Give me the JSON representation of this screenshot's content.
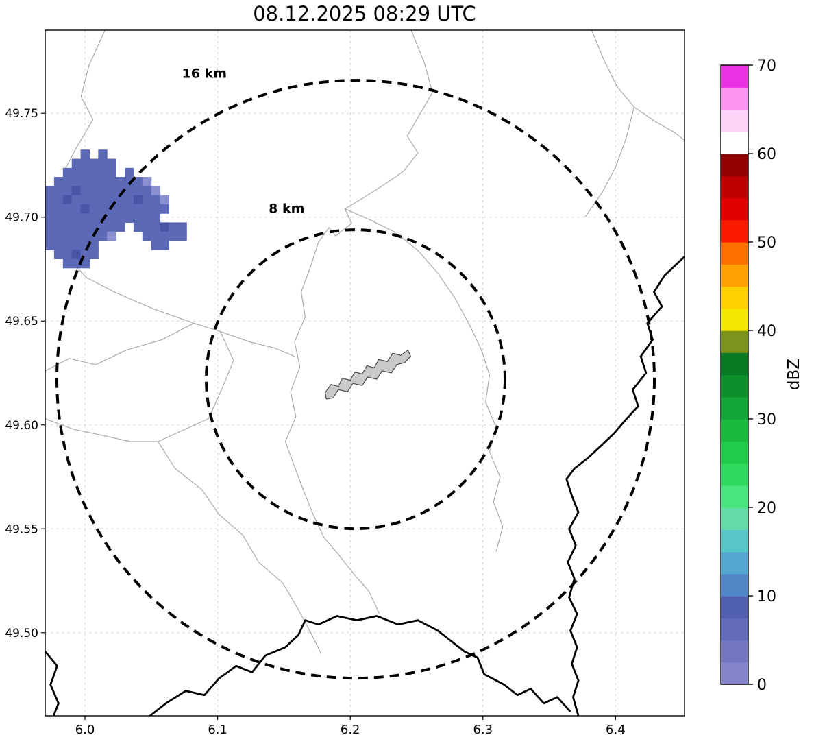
{
  "chart_data": {
    "type": "heatmap",
    "title": "08.12.2025 08:29 UTC",
    "xlim": [
      5.97,
      6.452
    ],
    "ylim": [
      49.46,
      49.79
    ],
    "xticks": [
      6.0,
      6.1,
      6.2,
      6.3,
      6.4
    ],
    "xtick_labels": [
      "6.0",
      "6.1",
      "6.2",
      "6.3",
      "6.4"
    ],
    "yticks": [
      49.5,
      49.55,
      49.6,
      49.65,
      49.7,
      49.75
    ],
    "ytick_labels": [
      "49.50",
      "49.55",
      "49.60",
      "49.65",
      "49.70",
      "49.75"
    ],
    "grid": true,
    "colorbar": {
      "label": "dBZ",
      "vmin": 0,
      "vmax": 70,
      "ticks": [
        0,
        10,
        20,
        30,
        40,
        50,
        60,
        70
      ],
      "colors": [
        "#8583cb",
        "#7377c2",
        "#616bb9",
        "#505fb0",
        "#4f86c6",
        "#54a6d3",
        "#57c6c8",
        "#63dca8",
        "#49e57e",
        "#2eda5d",
        "#1fcb4a",
        "#17b93e",
        "#12a535",
        "#0d8f2c",
        "#097a24",
        "#7a941c",
        "#f5e800",
        "#ffd000",
        "#ffa000",
        "#ff7000",
        "#fb1c00",
        "#e00000",
        "#bc0000",
        "#930202",
        "#ffffff",
        "#fdd3f8",
        "#fb93ef",
        "#ea32e2"
      ]
    },
    "range_rings": {
      "center_lon": 6.204,
      "center_lat": 49.622,
      "rings": [
        {
          "radius_km": 8,
          "label": "8 km",
          "label_lon": 6.152,
          "label_lat": 49.702
        },
        {
          "radius_km": 16,
          "label": "16 km",
          "label_lon": 6.09,
          "label_lat": 49.767
        }
      ]
    },
    "city_outline": [
      [
        6.181,
        49.6155
      ],
      [
        6.1855,
        49.6195
      ],
      [
        6.191,
        49.6185
      ],
      [
        6.194,
        49.6225
      ],
      [
        6.2,
        49.6215
      ],
      [
        6.2035,
        49.6255
      ],
      [
        6.209,
        49.6245
      ],
      [
        6.2125,
        49.6285
      ],
      [
        6.218,
        49.6275
      ],
      [
        6.2215,
        49.6315
      ],
      [
        6.228,
        49.6305
      ],
      [
        6.232,
        49.6345
      ],
      [
        6.238,
        49.6335
      ],
      [
        6.2435,
        49.636
      ],
      [
        6.2455,
        49.633
      ],
      [
        6.241,
        49.63
      ],
      [
        6.235,
        49.629
      ],
      [
        6.231,
        49.625
      ],
      [
        6.224,
        49.626
      ],
      [
        6.22,
        49.622
      ],
      [
        6.213,
        49.623
      ],
      [
        6.209,
        49.619
      ],
      [
        6.202,
        49.62
      ],
      [
        6.198,
        49.616
      ],
      [
        6.191,
        49.617
      ],
      [
        6.187,
        49.613
      ],
      [
        6.182,
        49.6125
      ]
    ],
    "borders_thick": [
      [
        [
          6.452,
          49.681
        ],
        [
          6.437,
          49.672
        ],
        [
          6.429,
          49.664
        ],
        [
          6.435,
          49.657
        ],
        [
          6.424,
          49.649
        ],
        [
          6.428,
          49.641
        ],
        [
          6.419,
          49.633
        ],
        [
          6.423,
          49.625
        ],
        [
          6.413,
          49.617
        ],
        [
          6.417,
          49.609
        ],
        [
          6.407,
          49.602
        ],
        [
          6.399,
          49.596
        ],
        [
          6.389,
          49.59
        ],
        [
          6.379,
          49.584
        ],
        [
          6.369,
          49.579
        ],
        [
          6.363,
          49.574
        ],
        [
          6.367,
          49.566
        ],
        [
          6.372,
          49.558
        ],
        [
          6.365,
          49.55
        ],
        [
          6.37,
          49.542
        ],
        [
          6.364,
          49.534
        ],
        [
          6.369,
          49.526
        ],
        [
          6.365,
          49.517
        ],
        [
          6.371,
          49.509
        ],
        [
          6.366,
          49.501
        ],
        [
          6.371,
          49.493
        ],
        [
          6.367,
          49.485
        ],
        [
          6.372,
          49.477
        ],
        [
          6.368,
          49.469
        ],
        [
          6.372,
          49.46
        ]
      ],
      [
        [
          6.045,
          49.458
        ],
        [
          6.061,
          49.466
        ],
        [
          6.076,
          49.472
        ],
        [
          6.09,
          49.47
        ],
        [
          6.101,
          49.478
        ],
        [
          6.114,
          49.484
        ],
        [
          6.126,
          49.481
        ],
        [
          6.136,
          49.489
        ],
        [
          6.151,
          49.493
        ],
        [
          6.161,
          49.499
        ],
        [
          6.166,
          49.506
        ],
        [
          6.176,
          49.504
        ],
        [
          6.19,
          49.508
        ],
        [
          6.205,
          49.506
        ],
        [
          6.22,
          49.508
        ],
        [
          6.236,
          49.504
        ],
        [
          6.251,
          49.506
        ],
        [
          6.266,
          49.501
        ],
        [
          6.276,
          49.496
        ],
        [
          6.286,
          49.491
        ],
        [
          6.296,
          49.488
        ],
        [
          6.301,
          49.48
        ],
        [
          6.316,
          49.475
        ],
        [
          6.326,
          49.47
        ],
        [
          6.336,
          49.473
        ],
        [
          6.346,
          49.466
        ],
        [
          6.356,
          49.469
        ],
        [
          6.366,
          49.462
        ]
      ],
      [
        [
          5.97,
          49.491
        ],
        [
          5.979,
          49.484
        ],
        [
          5.974,
          49.475
        ],
        [
          5.98,
          49.466
        ],
        [
          5.975,
          49.458
        ]
      ]
    ],
    "boundaries_thin": [
      [
        [
          6.015,
          49.79
        ],
        [
          6.003,
          49.773
        ],
        [
          5.997,
          49.758
        ],
        [
          6.006,
          49.747
        ],
        [
          5.994,
          49.734
        ],
        [
          5.984,
          49.722
        ],
        [
          5.992,
          49.711
        ],
        [
          5.982,
          49.701
        ],
        [
          5.991,
          49.691
        ],
        [
          5.986,
          49.681
        ],
        [
          6.001,
          49.671
        ],
        [
          6.022,
          49.664
        ],
        [
          6.051,
          49.656
        ],
        [
          6.082,
          49.649
        ],
        [
          6.102,
          49.645
        ],
        [
          6.124,
          49.64
        ],
        [
          6.143,
          49.637
        ],
        [
          6.158,
          49.633
        ]
      ],
      [
        [
          6.082,
          49.649
        ],
        [
          6.058,
          49.641
        ],
        [
          6.031,
          49.636
        ],
        [
          6.008,
          49.629
        ],
        [
          5.988,
          49.632
        ],
        [
          5.97,
          49.626
        ]
      ],
      [
        [
          6.102,
          49.645
        ],
        [
          6.112,
          49.631
        ],
        [
          6.103,
          49.617
        ],
        [
          6.093,
          49.603
        ],
        [
          6.055,
          49.592
        ],
        [
          6.068,
          49.579
        ],
        [
          6.088,
          49.569
        ],
        [
          6.101,
          49.557
        ],
        [
          6.119,
          49.547
        ],
        [
          6.131,
          49.534
        ],
        [
          6.149,
          49.524
        ],
        [
          6.161,
          49.511
        ],
        [
          6.171,
          49.499
        ],
        [
          6.178,
          49.49
        ]
      ],
      [
        [
          5.97,
          49.603
        ],
        [
          5.991,
          49.598
        ],
        [
          6.013,
          49.595
        ],
        [
          6.034,
          49.592
        ],
        [
          6.055,
          49.592
        ]
      ],
      [
        [
          6.246,
          49.79
        ],
        [
          6.256,
          49.774
        ],
        [
          6.262,
          49.76
        ],
        [
          6.251,
          49.748
        ],
        [
          6.243,
          49.739
        ],
        [
          6.251,
          49.731
        ],
        [
          6.24,
          49.722
        ],
        [
          6.224,
          49.715
        ],
        [
          6.209,
          49.709
        ],
        [
          6.196,
          49.704
        ],
        [
          6.201,
          49.697
        ],
        [
          6.189,
          49.691
        ],
        [
          6.184,
          49.695
        ],
        [
          6.176,
          49.688
        ]
      ],
      [
        [
          6.176,
          49.688
        ],
        [
          6.17,
          49.676
        ],
        [
          6.163,
          49.664
        ],
        [
          6.166,
          49.652
        ],
        [
          6.158,
          49.64
        ],
        [
          6.162,
          49.628
        ],
        [
          6.155,
          49.616
        ],
        [
          6.159,
          49.604
        ],
        [
          6.151,
          49.592
        ],
        [
          6.158,
          49.58
        ],
        [
          6.165,
          49.568
        ],
        [
          6.172,
          49.557
        ],
        [
          6.18,
          49.546
        ],
        [
          6.192,
          49.537
        ],
        [
          6.203,
          49.528
        ],
        [
          6.214,
          49.52
        ],
        [
          6.222,
          49.509
        ]
      ],
      [
        [
          6.196,
          49.704
        ],
        [
          6.214,
          49.699
        ],
        [
          6.233,
          49.693
        ],
        [
          6.251,
          49.684
        ],
        [
          6.266,
          49.673
        ],
        [
          6.279,
          49.661
        ],
        [
          6.29,
          49.648
        ],
        [
          6.299,
          49.636
        ],
        [
          6.305,
          49.624
        ],
        [
          6.302,
          49.611
        ],
        [
          6.31,
          49.599
        ],
        [
          6.305,
          49.587
        ],
        [
          6.313,
          49.575
        ],
        [
          6.308,
          49.563
        ],
        [
          6.315,
          49.551
        ],
        [
          6.31,
          49.539
        ]
      ],
      [
        [
          6.382,
          49.79
        ],
        [
          6.391,
          49.776
        ],
        [
          6.401,
          49.763
        ],
        [
          6.414,
          49.753
        ],
        [
          6.43,
          49.746
        ],
        [
          6.444,
          49.741
        ],
        [
          6.452,
          49.737
        ]
      ],
      [
        [
          6.414,
          49.753
        ],
        [
          6.408,
          49.738
        ],
        [
          6.4,
          49.724
        ],
        [
          6.39,
          49.712
        ],
        [
          6.377,
          49.7
        ]
      ]
    ],
    "precip": {
      "origin_lon": 5.97,
      "origin_lat": 49.7325,
      "dlon": 0.00666,
      "dlat": 0.00438,
      "palette": {
        "1": "#8a8fd0",
        "2": "#5b69b6",
        "3": "#4956a8"
      },
      "rows": [
        "....2.2.........",
        "...22222........",
        "..222222.2......",
        ".22222222221....",
        "2223222222221...",
        "22322222223221..",
        "22223222222222..",
        "2222222222222...",
        "222222222.222322",
        "22222221...22222",
        "222222......22..",
        ".22322..........",
        "..222..........."
      ]
    },
    "colors": {
      "grid": "#c9c9c9",
      "thin_line": "#aaaaaa",
      "thick_line": "#000000",
      "city_fill": "#c9c9c9",
      "city_edge": "#4a4a4a",
      "ring": "#000000",
      "background": "#ffffff"
    }
  }
}
